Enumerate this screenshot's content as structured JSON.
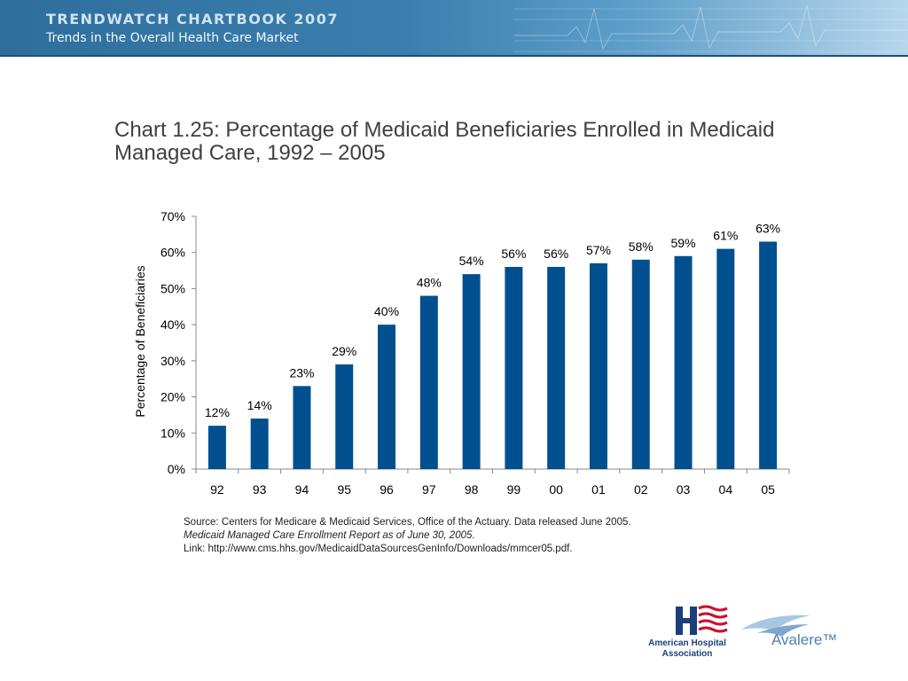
{
  "header": {
    "line1": "TRENDWATCH CHARTBOOK 2007",
    "line2": "Trends in the Overall Health Care Market"
  },
  "chart_data": {
    "type": "bar",
    "title_line1": "Chart 1.25: Percentage of Medicaid Beneficiaries Enrolled in Medicaid",
    "title_line2": "Managed Care, 1992 – 2005",
    "ylabel": "Percentage of Beneficiaries",
    "xlabel": "",
    "ylim": [
      0,
      70
    ],
    "yticks": [
      "0%",
      "10%",
      "20%",
      "30%",
      "40%",
      "50%",
      "60%",
      "70%"
    ],
    "yticks_values": [
      0,
      10,
      20,
      30,
      40,
      50,
      60,
      70
    ],
    "categories": [
      "92",
      "93",
      "94",
      "95",
      "96",
      "97",
      "98",
      "99",
      "00",
      "01",
      "02",
      "03",
      "04",
      "05"
    ],
    "values": [
      12,
      14,
      23,
      29,
      40,
      48,
      54,
      56,
      56,
      57,
      58,
      59,
      61,
      63
    ],
    "labels": [
      "12%",
      "14%",
      "23%",
      "29%",
      "40%",
      "48%",
      "54%",
      "56%",
      "56%",
      "57%",
      "58%",
      "59%",
      "61%",
      "63%"
    ],
    "bar_color": "#00508f",
    "grid": false
  },
  "source": {
    "line1": "Source:  Centers for Medicare & Medicaid Services, Office of the Actuary.  Data released June 2005.",
    "line2": "Medicaid Managed Care Enrollment Report as of June 30, 2005.",
    "line3": "Link: http://www.cms.hhs.gov/MedicaidDataSourcesGenInfo/Downloads/mmcer05.pdf."
  },
  "logos": {
    "aha_line1": "American Hospital",
    "aha_line2": "Association",
    "avalere": "Avalere™"
  }
}
